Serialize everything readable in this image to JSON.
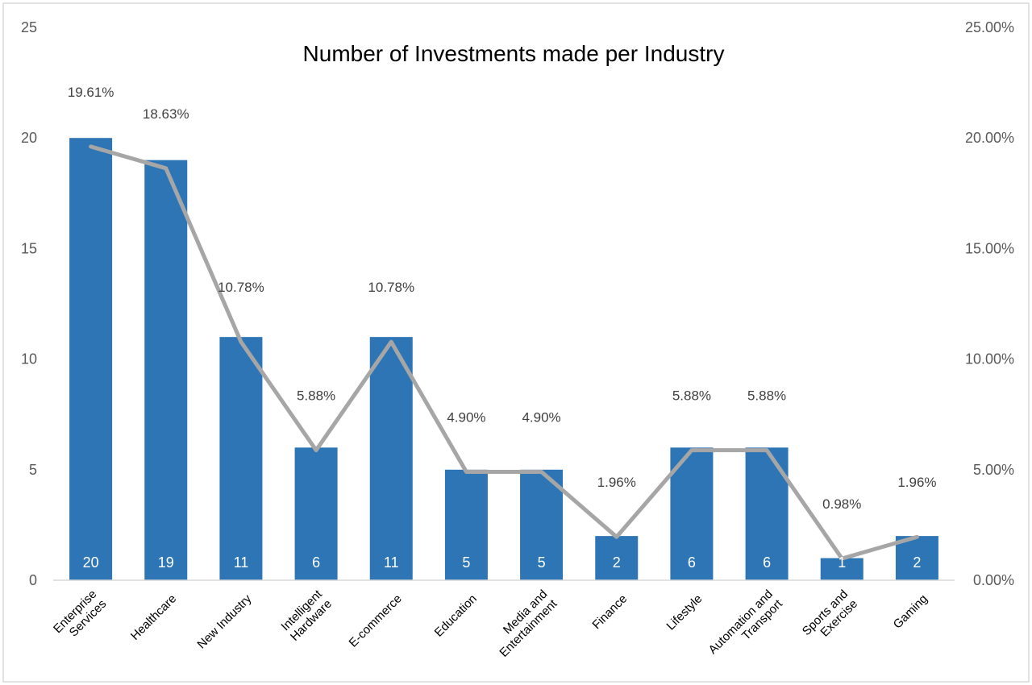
{
  "chart_data": {
    "type": "bar",
    "title": "Number of Investments made per Industry",
    "categories": [
      [
        "Enterprise",
        "Services"
      ],
      [
        "Healthcare"
      ],
      [
        "New Industry"
      ],
      [
        "Intelligent",
        "Hardware"
      ],
      [
        "E-commerce"
      ],
      [
        "Education"
      ],
      [
        "Media and",
        "Entertainment"
      ],
      [
        "Finance"
      ],
      [
        "Lifestyle"
      ],
      [
        "Automation and",
        "Transport"
      ],
      [
        "Sports and",
        "Exercise"
      ],
      [
        "Gaming"
      ]
    ],
    "series": [
      {
        "type": "bar",
        "axis": "left",
        "color": "#2e75b6",
        "values": [
          20,
          19,
          11,
          6,
          11,
          5,
          5,
          2,
          6,
          6,
          1,
          2
        ],
        "labels": [
          "20",
          "19",
          "11",
          "6",
          "11",
          "5",
          "5",
          "2",
          "6",
          "6",
          "1",
          "2"
        ]
      },
      {
        "type": "line",
        "axis": "right",
        "color": "#a6a6a6",
        "values": [
          19.61,
          18.63,
          10.78,
          5.88,
          10.78,
          4.9,
          4.9,
          1.96,
          5.88,
          5.88,
          0.98,
          1.96
        ],
        "labels": [
          "19.61%",
          "18.63%",
          "10.78%",
          "5.88%",
          "10.78%",
          "4.90%",
          "4.90%",
          "1.96%",
          "5.88%",
          "5.88%",
          "0.98%",
          "1.96%"
        ]
      }
    ],
    "left_axis": {
      "ylim": [
        0,
        25
      ],
      "ticks": [
        0,
        5,
        10,
        15,
        20,
        25
      ],
      "tick_labels": [
        "0",
        "5",
        "10",
        "15",
        "20",
        "25"
      ]
    },
    "right_axis": {
      "ylim": [
        0,
        25
      ],
      "ticks": [
        0,
        5,
        10,
        15,
        20,
        25
      ],
      "tick_labels": [
        "0.00%",
        "5.00%",
        "10.00%",
        "15.00%",
        "20.00%",
        "25.00%"
      ]
    },
    "grid": false,
    "legend": "none"
  }
}
